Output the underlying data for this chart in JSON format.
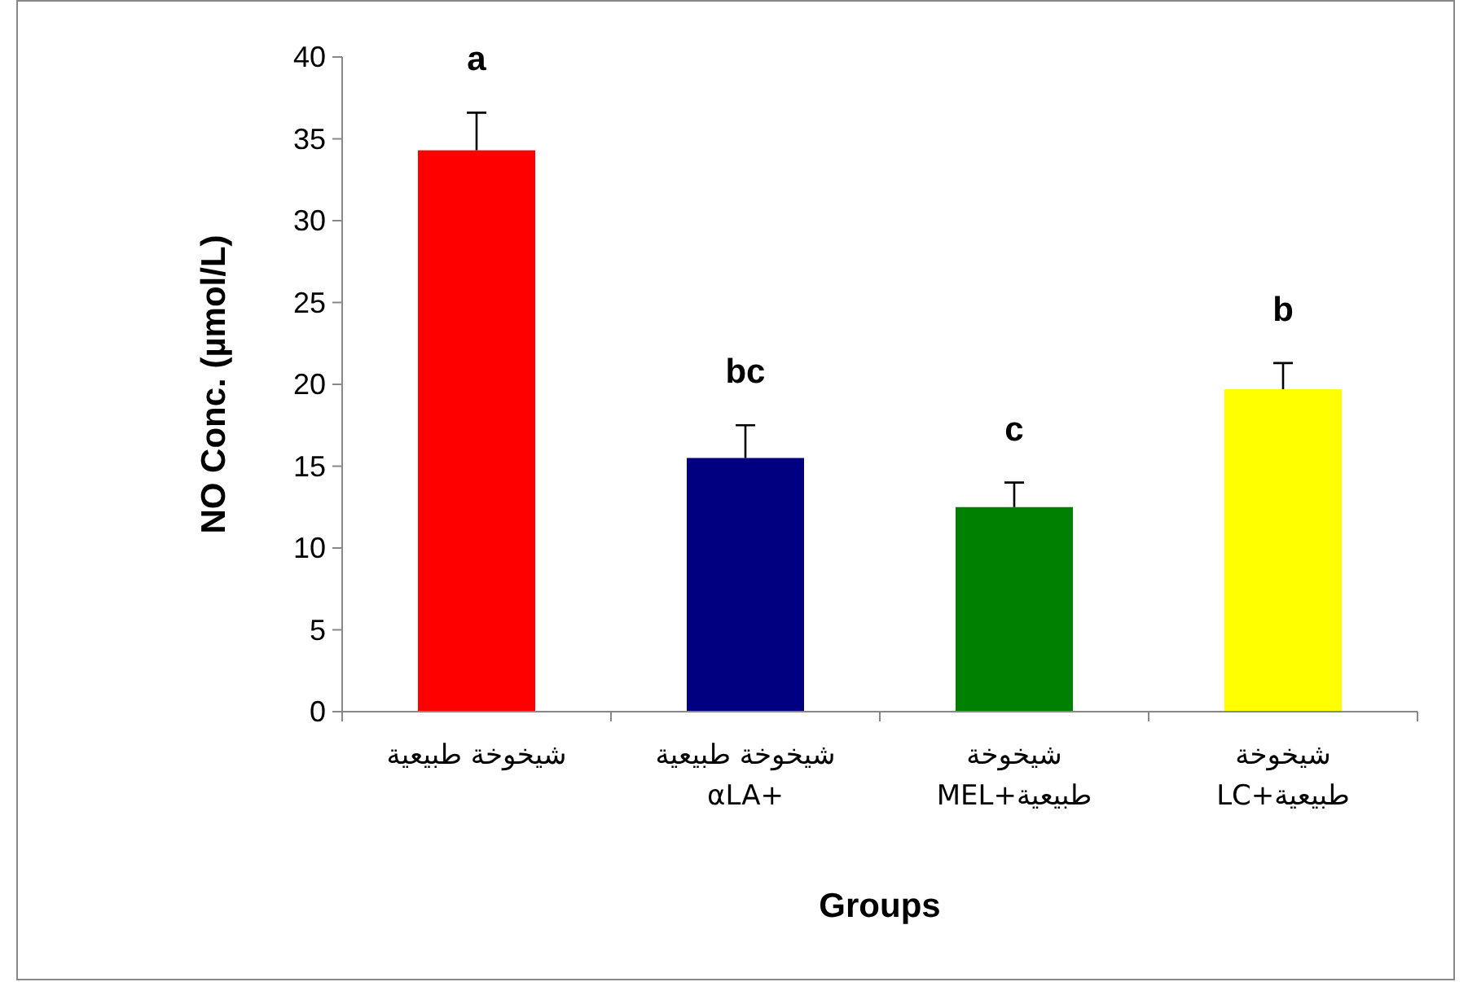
{
  "chart_data": {
    "type": "bar",
    "xlabel": "Groups",
    "ylabel": "NO Conc. (µmol/L)",
    "categories": [
      "شيخوخة طبيعية",
      "شيخوخة طبيعية\nαLA+",
      "شيخوخة\nطبيعية+MEL",
      "شيخوخة\nطبيعية+LC"
    ],
    "values": [
      34.3,
      15.5,
      12.5,
      19.7
    ],
    "colors": [
      "#ff0000",
      "#000080",
      "#008000",
      "#ffff00"
    ],
    "errors": [
      [
        34.3,
        36.6
      ],
      [
        15.5,
        17.5
      ],
      [
        12.5,
        14.0
      ],
      [
        19.7,
        21.3
      ]
    ],
    "ylim": [
      0,
      40
    ],
    "yticks": [
      0,
      5,
      10,
      15,
      20,
      25,
      30,
      35,
      40
    ],
    "annotations": [
      "a",
      "bc",
      "c",
      "b"
    ],
    "grid": false
  }
}
